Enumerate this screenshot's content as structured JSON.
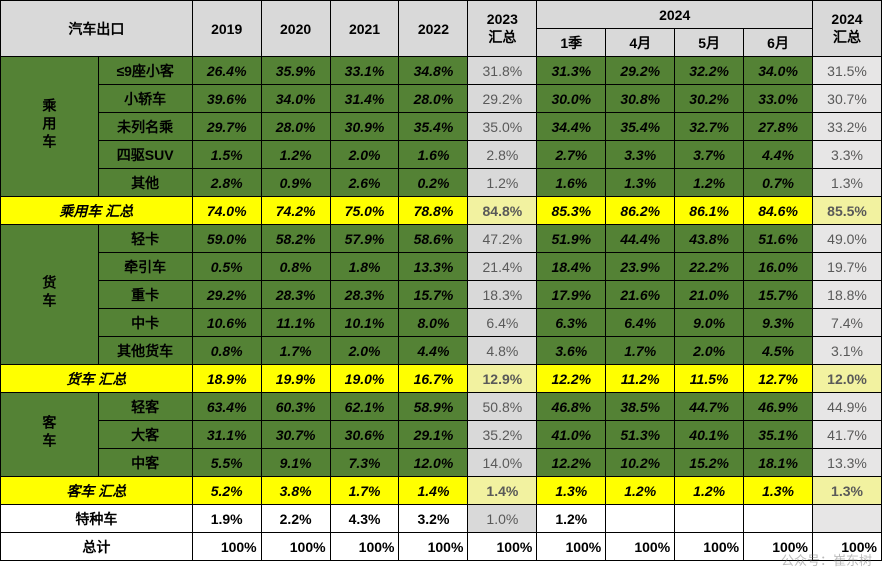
{
  "title": "汽车出口",
  "headers": {
    "years": [
      "2019",
      "2020",
      "2021",
      "2022"
    ],
    "sum2023": "2023\n汇总",
    "year2024": "2024",
    "months2024": [
      "1季",
      "4月",
      "5月",
      "6月"
    ],
    "sum2024": "2024\n汇总"
  },
  "groups": [
    {
      "label": "乘用车",
      "rows": [
        {
          "name": "≤9座小客",
          "v": [
            "26.4%",
            "35.9%",
            "33.1%",
            "34.8%",
            "31.8%",
            "31.3%",
            "29.2%",
            "32.2%",
            "34.0%",
            "31.5%"
          ]
        },
        {
          "name": "小轿车",
          "v": [
            "39.6%",
            "34.0%",
            "31.4%",
            "28.0%",
            "29.2%",
            "30.0%",
            "30.8%",
            "30.2%",
            "33.0%",
            "30.7%"
          ]
        },
        {
          "name": "未列名乘",
          "v": [
            "29.7%",
            "28.0%",
            "30.9%",
            "35.4%",
            "35.0%",
            "34.4%",
            "35.4%",
            "32.7%",
            "27.8%",
            "33.2%"
          ]
        },
        {
          "name": "四驱SUV",
          "v": [
            "1.5%",
            "1.2%",
            "2.0%",
            "1.6%",
            "2.8%",
            "2.7%",
            "3.3%",
            "3.7%",
            "4.4%",
            "3.3%"
          ]
        },
        {
          "name": "其他",
          "v": [
            "2.8%",
            "0.9%",
            "2.6%",
            "0.2%",
            "1.2%",
            "1.6%",
            "1.3%",
            "1.2%",
            "0.7%",
            "1.3%"
          ]
        }
      ],
      "subtotal": {
        "name": "乘用车 汇总",
        "v": [
          "74.0%",
          "74.2%",
          "75.0%",
          "78.8%",
          "84.8%",
          "85.3%",
          "86.2%",
          "86.1%",
          "84.6%",
          "85.5%"
        ]
      }
    },
    {
      "label": "货车",
      "rows": [
        {
          "name": "轻卡",
          "v": [
            "59.0%",
            "58.2%",
            "57.9%",
            "58.6%",
            "47.2%",
            "51.9%",
            "44.4%",
            "43.8%",
            "51.6%",
            "49.0%"
          ]
        },
        {
          "name": "牵引车",
          "v": [
            "0.5%",
            "0.8%",
            "1.8%",
            "13.3%",
            "21.4%",
            "18.4%",
            "23.9%",
            "22.2%",
            "16.0%",
            "19.7%"
          ]
        },
        {
          "name": "重卡",
          "v": [
            "29.2%",
            "28.3%",
            "28.3%",
            "15.7%",
            "18.3%",
            "17.9%",
            "21.6%",
            "21.0%",
            "15.7%",
            "18.8%"
          ]
        },
        {
          "name": "中卡",
          "v": [
            "10.6%",
            "11.1%",
            "10.1%",
            "8.0%",
            "6.4%",
            "6.3%",
            "6.4%",
            "9.0%",
            "9.3%",
            "7.4%"
          ]
        },
        {
          "name": "其他货车",
          "v": [
            "0.8%",
            "1.7%",
            "2.0%",
            "4.4%",
            "4.8%",
            "3.6%",
            "1.7%",
            "2.0%",
            "4.5%",
            "3.1%"
          ]
        }
      ],
      "subtotal": {
        "name": "货车 汇总",
        "v": [
          "18.9%",
          "19.9%",
          "19.0%",
          "16.7%",
          "12.9%",
          "12.2%",
          "11.2%",
          "11.5%",
          "12.7%",
          "12.0%"
        ]
      }
    },
    {
      "label": "客车",
      "rows": [
        {
          "name": "轻客",
          "v": [
            "63.4%",
            "60.3%",
            "62.1%",
            "58.9%",
            "50.8%",
            "46.8%",
            "38.5%",
            "44.7%",
            "46.9%",
            "44.9%"
          ]
        },
        {
          "name": "大客",
          "v": [
            "31.1%",
            "30.7%",
            "30.6%",
            "29.1%",
            "35.2%",
            "41.0%",
            "51.3%",
            "40.1%",
            "35.1%",
            "41.7%"
          ]
        },
        {
          "name": "中客",
          "v": [
            "5.5%",
            "9.1%",
            "7.3%",
            "12.0%",
            "14.0%",
            "12.2%",
            "10.2%",
            "15.2%",
            "18.1%",
            "13.3%"
          ]
        }
      ],
      "subtotal": {
        "name": "客车 汇总",
        "v": [
          "5.2%",
          "3.8%",
          "1.7%",
          "1.4%",
          "1.4%",
          "1.3%",
          "1.2%",
          "1.2%",
          "1.3%",
          "1.3%"
        ]
      }
    }
  ],
  "special": {
    "name": "特种车",
    "v": [
      "1.9%",
      "2.2%",
      "4.3%",
      "3.2%",
      "1.0%",
      "1.2%",
      "",
      "",
      "",
      ""
    ]
  },
  "total": {
    "name": "总计",
    "v": [
      "100%",
      "100%",
      "100%",
      "100%",
      "100%",
      "100%",
      "100%",
      "100%",
      "100%",
      "100%"
    ]
  },
  "watermark": "公众号：崔东树"
}
